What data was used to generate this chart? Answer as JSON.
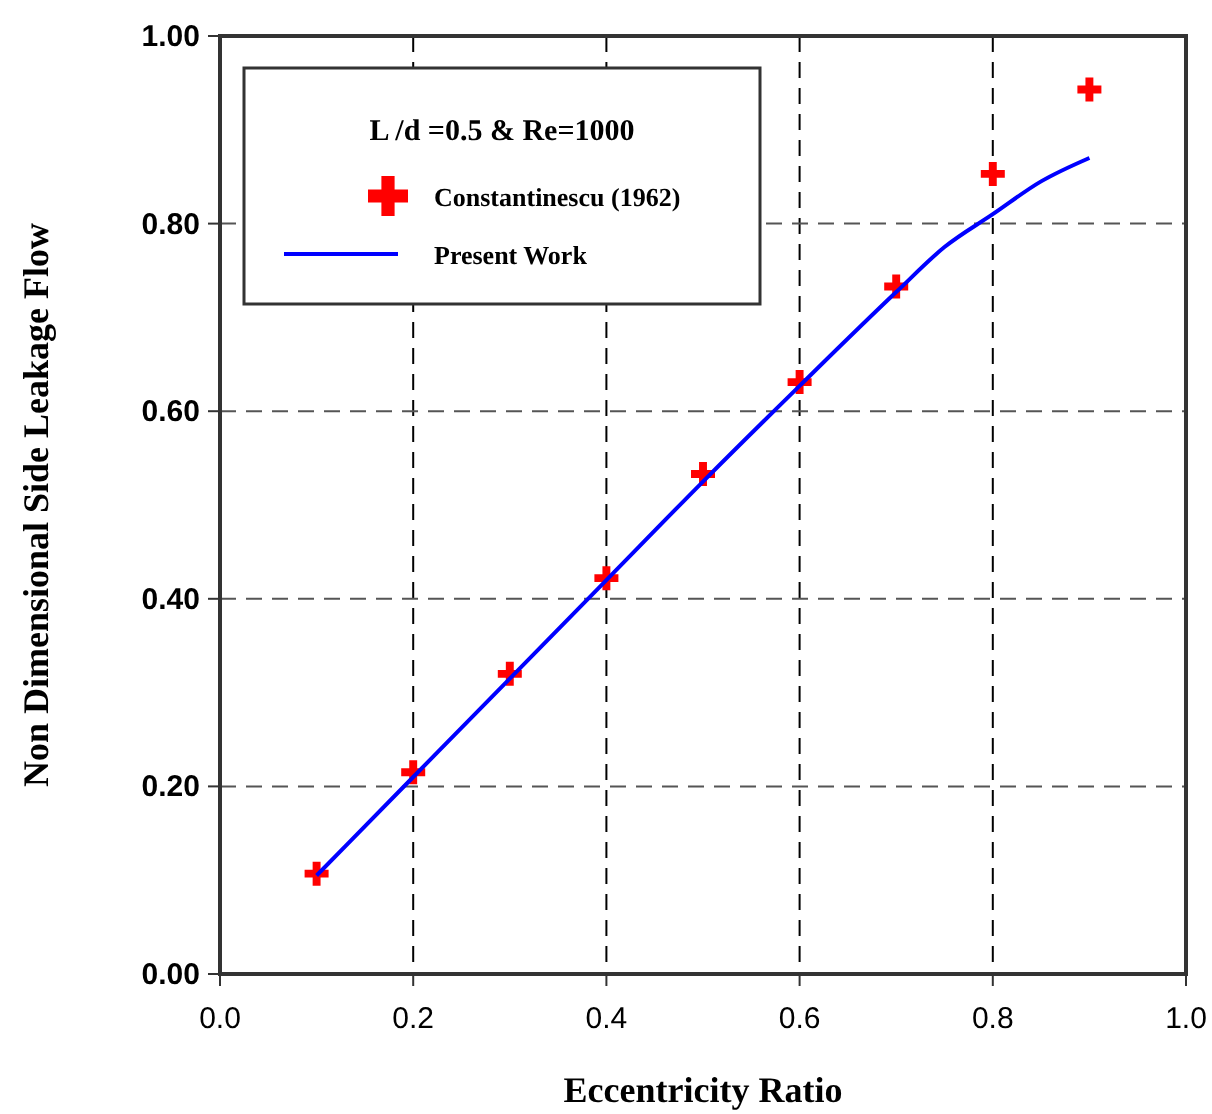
{
  "chart_data": {
    "type": "scatter",
    "xlabel": "Eccentricity Ratio",
    "ylabel": "Non Dimensional Side Leakage Flow",
    "legend_title": "L /d =0.5 & Re=1000",
    "legend": "top left",
    "grid": true,
    "xlim": [
      0,
      1
    ],
    "xticks": [
      {
        "value": 0,
        "label": "0.0"
      },
      {
        "value": 0.2,
        "label": "0.2"
      },
      {
        "value": 0.4,
        "label": "0.4"
      },
      {
        "value": 0.6,
        "label": "0.6"
      },
      {
        "value": 0.8,
        "label": "0.8"
      },
      {
        "value": 1,
        "label": "1.0"
      }
    ],
    "ylim": [
      0,
      1
    ],
    "yticks": [
      {
        "value": 0,
        "label": "0.00"
      },
      {
        "value": 0.2,
        "label": "0.20"
      },
      {
        "value": 0.4,
        "label": "0.40"
      },
      {
        "value": 0.6,
        "label": "0.60"
      },
      {
        "value": 0.8,
        "label": "0.80"
      },
      {
        "value": 1,
        "label": "1.00"
      }
    ],
    "series": [
      {
        "name": "Constantinescu (1962)",
        "marker": "cross",
        "color": "#ff0000",
        "x": [
          0.1,
          0.2,
          0.3,
          0.4,
          0.5,
          0.6,
          0.7,
          0.8,
          0.9
        ],
        "values": [
          0.107,
          0.215,
          0.32,
          0.422,
          0.533,
          0.631,
          0.733,
          0.853,
          0.943
        ]
      },
      {
        "name": "Present Work",
        "type": "line",
        "marker": "none",
        "line_style": "solid",
        "color": "#0000ff",
        "x": [
          0.1,
          0.2,
          0.3,
          0.4,
          0.5,
          0.6,
          0.7,
          0.75,
          0.8,
          0.85,
          0.9
        ],
        "values": [
          0.105,
          0.21,
          0.315,
          0.42,
          0.525,
          0.627,
          0.727,
          0.775,
          0.81,
          0.845,
          0.87
        ]
      }
    ]
  }
}
